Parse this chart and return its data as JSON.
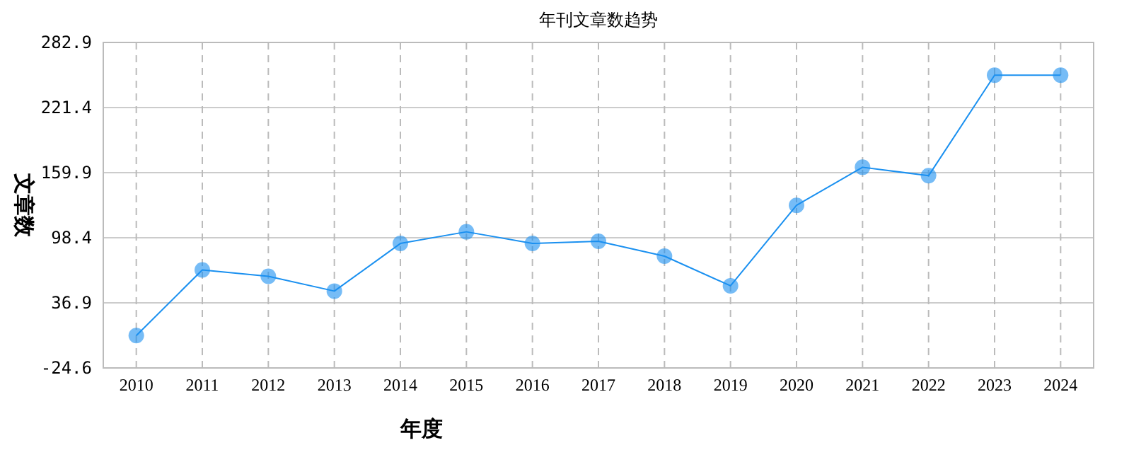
{
  "chart_data": {
    "type": "line",
    "title": "年刊文章数趋势",
    "xlabel": "年度",
    "ylabel": "文章数",
    "categories": [
      "2010",
      "2011",
      "2012",
      "2013",
      "2014",
      "2015",
      "2016",
      "2017",
      "2018",
      "2019",
      "2020",
      "2021",
      "2022",
      "2023",
      "2024"
    ],
    "series": [
      {
        "color": "#1a90f0",
        "values": [
          6,
          68,
          62,
          48,
          93,
          104,
          93,
          95,
          81,
          53,
          129,
          165,
          157,
          252,
          252
        ]
      }
    ],
    "ylim": [
      -24.6,
      282.9
    ],
    "yticks": [
      -24.6,
      36.9,
      98.4,
      159.9,
      221.4,
      282.9
    ],
    "grid": true,
    "marker": "circle",
    "line_style": "solid"
  }
}
